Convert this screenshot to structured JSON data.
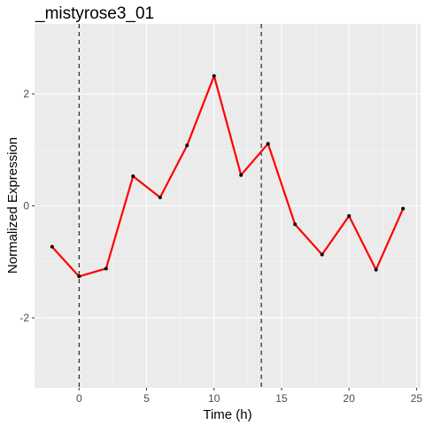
{
  "chart_data": {
    "type": "line",
    "title": "_mistyrose3_01",
    "xlabel": "Time (h)",
    "ylabel": "Normalized Expression",
    "xlim": [
      -3.3,
      25.3
    ],
    "ylim": [
      -3.25,
      3.25
    ],
    "x_ticks": [
      0,
      5,
      10,
      15,
      20,
      25
    ],
    "x_tick_labels": [
      "0",
      "5",
      "10",
      "15",
      "20",
      "25"
    ],
    "y_ticks": [
      -2,
      0,
      2
    ],
    "y_tick_labels": [
      "-2",
      "0",
      "2"
    ],
    "grid": true,
    "legend": "none",
    "series": [
      {
        "x": [
          -2,
          0,
          2,
          4,
          6,
          8,
          10,
          12,
          14,
          16,
          18,
          20,
          22,
          24
        ],
        "y": [
          -0.73,
          -1.26,
          -1.12,
          0.53,
          0.15,
          1.08,
          2.32,
          0.55,
          1.11,
          -0.33,
          -0.87,
          -0.18,
          -1.14,
          -0.05
        ],
        "color": "#ff0000"
      }
    ],
    "vlines": [
      0,
      13.5
    ],
    "colors": {
      "panel_bg": "#ebebeb",
      "grid_major": "#ffffff",
      "line": "#ff0000",
      "points": "#000000",
      "vline": "#000000"
    }
  }
}
